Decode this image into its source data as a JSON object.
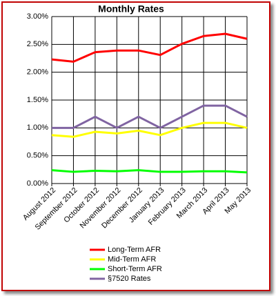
{
  "chart_data": {
    "type": "line",
    "title": "Monthly Rates",
    "categories": [
      "August 2012",
      "September 2012",
      "October 2012",
      "November 2012",
      "December 2012",
      "January 2013",
      "February 2013",
      "March 2013",
      "April 2013",
      "May 2013"
    ],
    "series": [
      {
        "name": "Long-Term AFR",
        "color": "#ff0000",
        "values": [
          2.23,
          2.19,
          2.36,
          2.39,
          2.39,
          2.31,
          2.51,
          2.65,
          2.69,
          2.6
        ]
      },
      {
        "name": "Mid-Term AFR",
        "color": "#ffff00",
        "values": [
          0.87,
          0.84,
          0.93,
          0.9,
          0.95,
          0.87,
          1.0,
          1.09,
          1.09,
          1.0
        ]
      },
      {
        "name": "Short-Term AFR",
        "color": "#00ff00",
        "values": [
          0.24,
          0.21,
          0.23,
          0.22,
          0.24,
          0.21,
          0.21,
          0.22,
          0.22,
          0.2
        ]
      },
      {
        "name": "§7520 Rates",
        "color": "#8064a2",
        "values": [
          1.0,
          1.0,
          1.2,
          1.0,
          1.2,
          1.0,
          1.2,
          1.4,
          1.4,
          1.2
        ]
      }
    ],
    "ylim": [
      0,
      3
    ],
    "yticks": [
      {
        "value": 0,
        "label": "0.00%"
      },
      {
        "value": 0.5,
        "label": "0.50%"
      },
      {
        "value": 1,
        "label": "1.00%"
      },
      {
        "value": 1.5,
        "label": "1.50%"
      },
      {
        "value": 2,
        "label": "2.00%"
      },
      {
        "value": 2.5,
        "label": "2.50%"
      },
      {
        "value": 3,
        "label": "3.00%"
      }
    ],
    "grid": true,
    "legend": "bottom"
  }
}
